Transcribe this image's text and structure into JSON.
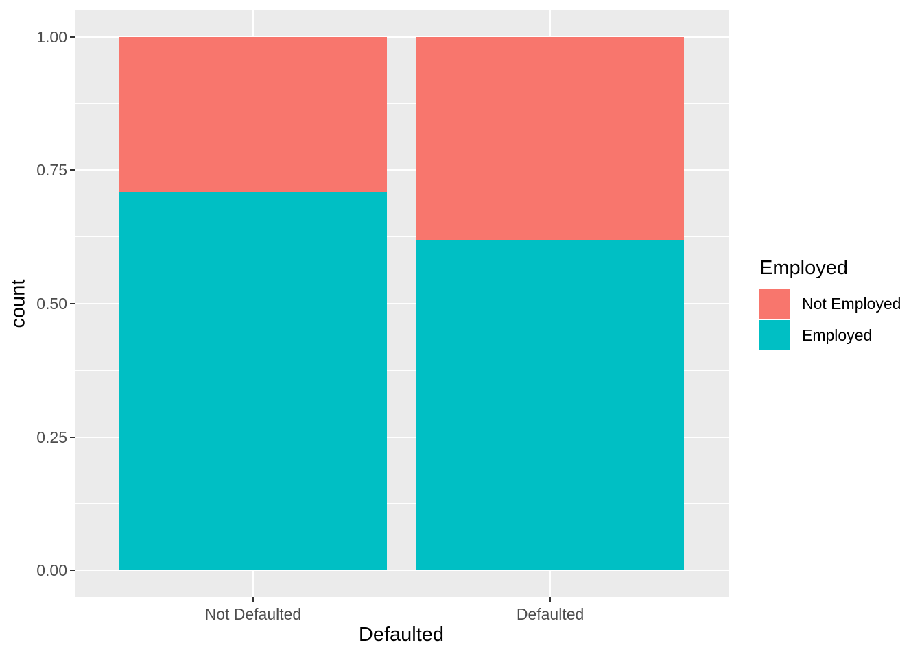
{
  "chart_data": {
    "type": "bar",
    "stacked": true,
    "normalized": true,
    "title": "",
    "xlabel": "Defaulted",
    "ylabel": "count",
    "categories": [
      "Not Defaulted",
      "Defaulted"
    ],
    "series": [
      {
        "name": "Not Employed",
        "color": "#F8766D",
        "values": [
          0.29,
          0.38
        ]
      },
      {
        "name": "Employed",
        "color": "#00BFC4",
        "values": [
          0.71,
          0.62
        ]
      }
    ],
    "ylim": [
      0,
      1
    ],
    "ytick_values": [
      0.0,
      0.25,
      0.5,
      0.75,
      1.0
    ],
    "ytick_labels": [
      "0.00",
      "0.25",
      "0.50",
      "0.75",
      "1.00"
    ],
    "legend": {
      "title": "Employed",
      "position": "right"
    },
    "grid": true,
    "colors": {
      "panel_background": "#EBEBEB",
      "gridline": "#FFFFFF",
      "tick_label": "#4D4D4D",
      "tick_mark": "#333333",
      "figure_background": "#FFFFFF"
    }
  }
}
